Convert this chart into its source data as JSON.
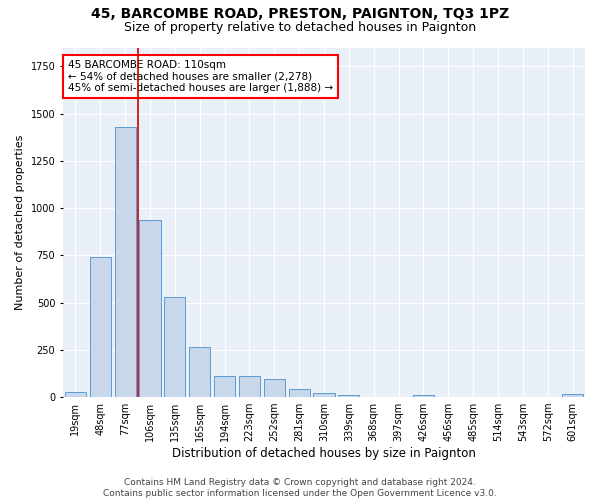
{
  "title1": "45, BARCOMBE ROAD, PRESTON, PAIGNTON, TQ3 1PZ",
  "title2": "Size of property relative to detached houses in Paignton",
  "xlabel": "Distribution of detached houses by size in Paignton",
  "ylabel": "Number of detached properties",
  "categories": [
    "19sqm",
    "48sqm",
    "77sqm",
    "106sqm",
    "135sqm",
    "165sqm",
    "194sqm",
    "223sqm",
    "252sqm",
    "281sqm",
    "310sqm",
    "339sqm",
    "368sqm",
    "397sqm",
    "426sqm",
    "456sqm",
    "485sqm",
    "514sqm",
    "543sqm",
    "572sqm",
    "601sqm"
  ],
  "values": [
    25,
    740,
    1430,
    935,
    530,
    265,
    110,
    110,
    95,
    42,
    22,
    12,
    0,
    0,
    12,
    0,
    0,
    0,
    0,
    0,
    15
  ],
  "bar_color": "#c8d8ea",
  "bar_edge_color": "#5b9bd5",
  "annotation_line1": "45 BARCOMBE ROAD: 110sqm",
  "annotation_line2": "← 54% of detached houses are smaller (2,278)",
  "annotation_line3": "45% of semi-detached houses are larger (1,888) →",
  "vline_color": "#cc0000",
  "vline_x": 2.5,
  "bg_color": "#eaf0f7",
  "footer": "Contains HM Land Registry data © Crown copyright and database right 2024.\nContains public sector information licensed under the Open Government Licence v3.0.",
  "ylim": [
    0,
    1850
  ],
  "title1_fontsize": 10,
  "title2_fontsize": 9,
  "xlabel_fontsize": 8.5,
  "ylabel_fontsize": 8,
  "tick_fontsize": 7,
  "annotation_fontsize": 7.5,
  "footer_fontsize": 6.5
}
